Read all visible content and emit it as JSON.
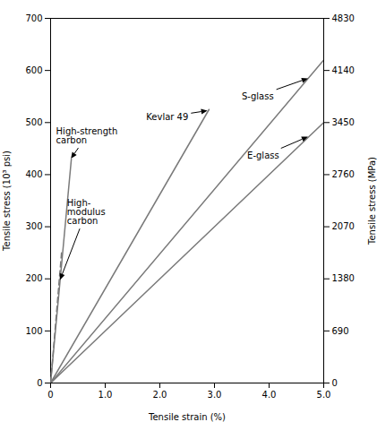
{
  "chart_data": {
    "type": "line",
    "xlabel": "Tensile strain (%)",
    "ylabel": "Tensile stress (10³ psi)",
    "y2label": "Tensile stress (MPa)",
    "xlim": [
      0,
      5.0
    ],
    "ylim": [
      0,
      700
    ],
    "y2lim": [
      0,
      4830
    ],
    "xticks": [
      0,
      {
        "value": 1.0,
        "label": "1.0"
      },
      {
        "value": 2.0,
        "label": "2.0"
      },
      {
        "value": 3.0,
        "label": "3.0"
      },
      {
        "value": 4.0,
        "label": "4.0"
      },
      {
        "value": 5.0,
        "label": "5.0"
      }
    ],
    "yticks": [
      0,
      100,
      200,
      300,
      400,
      500,
      600,
      700
    ],
    "y2ticks": [
      0,
      690,
      1380,
      2070,
      2760,
      3450,
      4140,
      4830
    ],
    "grid": false,
    "series": [
      {
        "x": [
          0,
          0.38
        ],
        "values": [
          0,
          430
        ],
        "color": "#7a7a7a",
        "line_style": "solid"
      },
      {
        "x": [
          0,
          0.2
        ],
        "values": [
          0,
          250
        ],
        "color": "#7a7a7a",
        "line_style": "dashed"
      },
      {
        "x": [
          0,
          2.9
        ],
        "values": [
          0,
          525
        ],
        "color": "#7a7a7a",
        "line_style": "solid"
      },
      {
        "x": [
          0,
          5.0
        ],
        "values": [
          0,
          620
        ],
        "color": "#7a7a7a",
        "line_style": "solid"
      },
      {
        "x": [
          0,
          5.0
        ],
        "values": [
          0,
          500
        ],
        "color": "#7a7a7a",
        "line_style": "solid"
      }
    ],
    "annotations": [
      {
        "text": "High-strength\ncarbon",
        "x": 0.1,
        "y": 460,
        "arrow_x": 0.38,
        "arrow_y": 430
      },
      {
        "text": "High-\nmodulus\ncarbon",
        "x": 0.3,
        "y": 305,
        "arrow_x": 0.18,
        "arrow_y": 197
      },
      {
        "text": "Kevlar 49",
        "x": 1.75,
        "y": 505,
        "arrow_x": 2.88,
        "arrow_y": 522
      },
      {
        "text": "S-glass",
        "x": 3.5,
        "y": 545,
        "arrow_x": 4.72,
        "arrow_y": 584
      },
      {
        "text": "E-glass",
        "x": 3.6,
        "y": 430,
        "arrow_x": 4.72,
        "arrow_y": 472
      }
    ]
  }
}
